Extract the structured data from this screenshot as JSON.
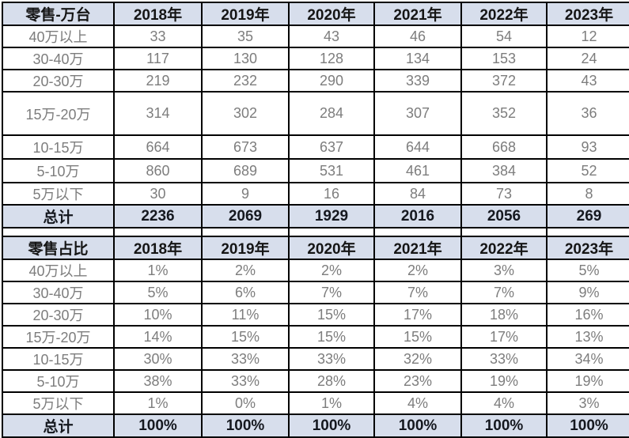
{
  "colors": {
    "header_bg": "#d7deec",
    "grid_line": "#000000",
    "data_text": "#7d7d7d",
    "header_text": "#151515",
    "background": "#ffffff"
  },
  "sections": [
    {
      "title": "零售-万台",
      "years": [
        "2018年",
        "2019年",
        "2020年",
        "2021年",
        "2022年",
        "2023年"
      ],
      "rows": [
        {
          "label": "40万以上",
          "values": [
            "33",
            "35",
            "43",
            "46",
            "54",
            "12"
          ]
        },
        {
          "label": "30-40万",
          "values": [
            "117",
            "130",
            "128",
            "134",
            "153",
            "24"
          ]
        },
        {
          "label": "20-30万",
          "values": [
            "219",
            "232",
            "290",
            "339",
            "372",
            "43"
          ]
        },
        {
          "label": "15万-20万",
          "values": [
            "314",
            "302",
            "284",
            "307",
            "352",
            "36"
          ],
          "size": "tall"
        },
        {
          "label": "10-15万",
          "values": [
            "664",
            "673",
            "637",
            "644",
            "668",
            "93"
          ],
          "size": "med"
        },
        {
          "label": "5-10万",
          "values": [
            "860",
            "689",
            "531",
            "461",
            "384",
            "52"
          ],
          "size": "med"
        },
        {
          "label": "5万以下",
          "values": [
            "30",
            "9",
            "16",
            "84",
            "73",
            "8"
          ]
        },
        {
          "label": "总计",
          "values": [
            "2236",
            "2069",
            "1929",
            "2016",
            "2056",
            "269"
          ],
          "total": true
        }
      ]
    },
    {
      "title": "零售占比",
      "years": [
        "2018年",
        "2019年",
        "2020年",
        "2021年",
        "2022年",
        "2023年"
      ],
      "rows": [
        {
          "label": "40万以上",
          "values": [
            "1%",
            "2%",
            "2%",
            "2%",
            "3%",
            "5%"
          ]
        },
        {
          "label": "30-40万",
          "values": [
            "5%",
            "6%",
            "7%",
            "7%",
            "7%",
            "9%"
          ]
        },
        {
          "label": "20-30万",
          "values": [
            "10%",
            "11%",
            "15%",
            "17%",
            "18%",
            "16%"
          ]
        },
        {
          "label": "15万-20万",
          "values": [
            "14%",
            "15%",
            "15%",
            "15%",
            "17%",
            "13%"
          ]
        },
        {
          "label": "10-15万",
          "values": [
            "30%",
            "33%",
            "33%",
            "32%",
            "33%",
            "34%"
          ]
        },
        {
          "label": "5-10万",
          "values": [
            "38%",
            "33%",
            "28%",
            "23%",
            "19%",
            "19%"
          ]
        },
        {
          "label": "5万以下",
          "values": [
            "1%",
            "0%",
            "1%",
            "4%",
            "4%",
            "3%"
          ]
        },
        {
          "label": "总计",
          "values": [
            "100%",
            "100%",
            "100%",
            "100%",
            "100%",
            "100%"
          ],
          "total": true
        }
      ]
    }
  ],
  "chart_data": [
    {
      "type": "table",
      "title": "零售-万台",
      "columns": [
        "零售-万台",
        "2018年",
        "2019年",
        "2020年",
        "2021年",
        "2022年",
        "2023年"
      ],
      "rows": [
        [
          "40万以上",
          33,
          35,
          43,
          46,
          54,
          12
        ],
        [
          "30-40万",
          117,
          130,
          128,
          134,
          153,
          24
        ],
        [
          "20-30万",
          219,
          232,
          290,
          339,
          372,
          43
        ],
        [
          "15万-20万",
          314,
          302,
          284,
          307,
          352,
          36
        ],
        [
          "10-15万",
          664,
          673,
          637,
          644,
          668,
          93
        ],
        [
          "5-10万",
          860,
          689,
          531,
          461,
          384,
          52
        ],
        [
          "5万以下",
          30,
          9,
          16,
          84,
          73,
          8
        ],
        [
          "总计",
          2236,
          2069,
          1929,
          2016,
          2056,
          269
        ]
      ]
    },
    {
      "type": "table",
      "title": "零售占比",
      "columns": [
        "零售占比",
        "2018年",
        "2019年",
        "2020年",
        "2021年",
        "2022年",
        "2023年"
      ],
      "rows": [
        [
          "40万以上",
          "1%",
          "2%",
          "2%",
          "2%",
          "3%",
          "5%"
        ],
        [
          "30-40万",
          "5%",
          "6%",
          "7%",
          "7%",
          "7%",
          "9%"
        ],
        [
          "20-30万",
          "10%",
          "11%",
          "15%",
          "17%",
          "18%",
          "16%"
        ],
        [
          "15万-20万",
          "14%",
          "15%",
          "15%",
          "15%",
          "17%",
          "13%"
        ],
        [
          "10-15万",
          "30%",
          "33%",
          "33%",
          "32%",
          "33%",
          "34%"
        ],
        [
          "5-10万",
          "38%",
          "33%",
          "28%",
          "23%",
          "19%",
          "19%"
        ],
        [
          "5万以下",
          "1%",
          "0%",
          "1%",
          "4%",
          "4%",
          "3%"
        ],
        [
          "总计",
          "100%",
          "100%",
          "100%",
          "100%",
          "100%",
          "100%"
        ]
      ]
    }
  ]
}
